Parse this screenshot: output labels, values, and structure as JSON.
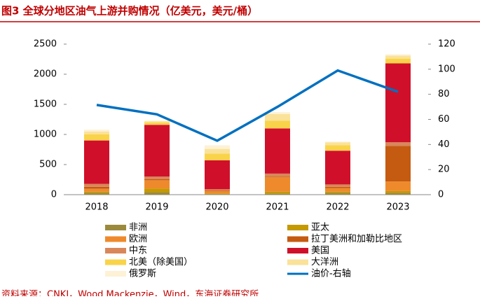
{
  "chart_data": {
    "type": "bar",
    "title": "图3  全球分地区油气上游并购情况（亿美元，美元/桶）",
    "source": "资料来源：CNKI，Wood Mackenzie，Wind，东海证券研究所",
    "categories": [
      "2018",
      "2019",
      "2020",
      "2021",
      "2022",
      "2023"
    ],
    "stacked": true,
    "series": [
      {
        "name": "非洲",
        "color": "#9c8a3c",
        "values": [
          30,
          40,
          10,
          20,
          30,
          30
        ]
      },
      {
        "name": "亚太",
        "color": "#c49a00",
        "values": [
          20,
          60,
          10,
          30,
          20,
          30
        ]
      },
      {
        "name": "欧洲",
        "color": "#ef8a2c",
        "values": [
          50,
          140,
          40,
          240,
          60,
          160
        ]
      },
      {
        "name": "拉丁美洲和加勒比地区",
        "color": "#c55a11",
        "values": [
          30,
          20,
          10,
          10,
          20,
          590
        ]
      },
      {
        "name": "中东",
        "color": "#d9875a",
        "values": [
          50,
          40,
          20,
          50,
          40,
          60
        ]
      },
      {
        "name": "美国",
        "color": "#d0102a",
        "values": [
          720,
          860,
          480,
          750,
          560,
          1310
        ]
      },
      {
        "name": "北美（除美国）",
        "color": "#f9d44a",
        "values": [
          100,
          40,
          110,
          130,
          90,
          80
        ]
      },
      {
        "name": "大洋洲",
        "color": "#fbe29a",
        "values": [
          50,
          20,
          80,
          110,
          50,
          50
        ]
      },
      {
        "name": "俄罗斯",
        "color": "#fdf2d6",
        "values": [
          30,
          10,
          60,
          30,
          10,
          20
        ]
      },
      {
        "name": "油价-右轴",
        "color": "#0070c0",
        "type": "line",
        "axis": "y2",
        "values": [
          71.5,
          64,
          43,
          70,
          99,
          82
        ]
      }
    ],
    "ylim": [
      0,
      2500
    ],
    "yticks": [
      0,
      500,
      1000,
      1500,
      2000,
      2500
    ],
    "y2lim": [
      0,
      120
    ],
    "y2ticks": [
      0,
      20,
      40,
      60,
      80,
      100,
      120
    ]
  }
}
